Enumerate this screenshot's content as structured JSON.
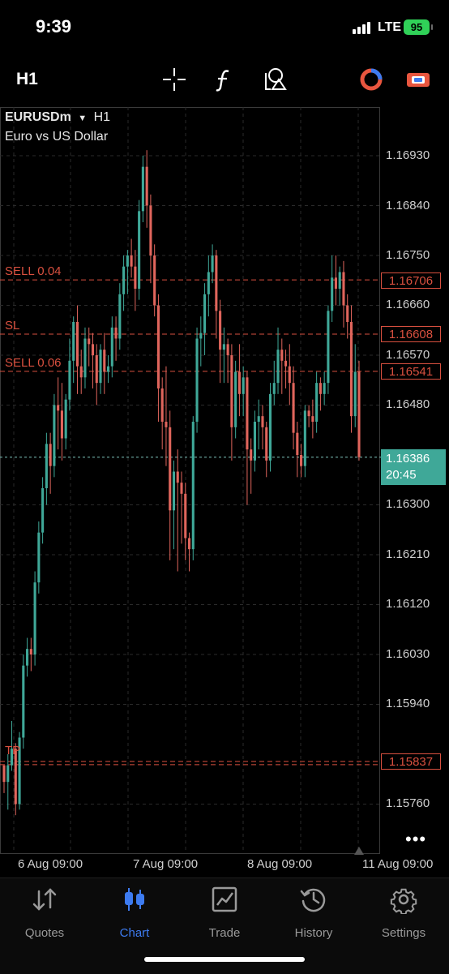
{
  "status_bar": {
    "time": "9:39",
    "network": "LTE",
    "battery": "95"
  },
  "toolbar": {
    "timeframe": "H1",
    "icons": [
      "crosshair-icon",
      "function-icon",
      "objects-icon",
      "one-click-trading-icon",
      "account-icon"
    ]
  },
  "chart_header": {
    "symbol": "EURUSDm",
    "timeframe": "H1",
    "description": "Euro vs US Dollar"
  },
  "price_axis": [
    "1.16930",
    "1.16840",
    "1.16750",
    "1.16660",
    "1.16570",
    "1.16480",
    "1.16300",
    "1.16210",
    "1.16120",
    "1.16030",
    "1.15940",
    "1.15760"
  ],
  "time_axis": [
    "6 Aug 09:00",
    "7 Aug 09:00",
    "8 Aug 09:00",
    "11 Aug 09:00"
  ],
  "levels": {
    "sell1": {
      "label": "SELL 0.04",
      "price": "1.16706"
    },
    "sl": {
      "label": "SL",
      "price": "1.16608"
    },
    "sell2": {
      "label": "SELL 0.06",
      "price": "1.16541"
    },
    "tp": {
      "label": "TP",
      "price": "1.15837"
    }
  },
  "current_price": {
    "price": "1.16386",
    "countdown": "20:45"
  },
  "colors": {
    "bull": "#3fa898",
    "bear": "#e0655c",
    "level": "#d9503f",
    "active_tab": "#3d7bf0"
  },
  "chart_data": {
    "type": "candlestick",
    "symbol": "EURUSDm",
    "timeframe": "H1",
    "ylim": [
      1.1572,
      1.1697
    ],
    "x_ticks": [
      "6 Aug 09:00",
      "7 Aug 09:00",
      "8 Aug 09:00",
      "11 Aug 09:00"
    ],
    "candles": [
      [
        1.1583,
        1.158,
        1.1578,
        1.1582
      ],
      [
        1.158,
        1.1583,
        1.1575,
        1.1585
      ],
      [
        1.1583,
        1.1586,
        1.1582,
        1.1591
      ],
      [
        1.1586,
        1.1576,
        1.1574,
        1.1587
      ],
      [
        1.1576,
        1.1588,
        1.1575,
        1.1589
      ],
      [
        1.1588,
        1.1601,
        1.1586,
        1.1603
      ],
      [
        1.1601,
        1.1604,
        1.1599,
        1.1606
      ],
      [
        1.1604,
        1.1603,
        1.16,
        1.1606
      ],
      [
        1.1603,
        1.1616,
        1.1601,
        1.1618
      ],
      [
        1.1616,
        1.1625,
        1.1614,
        1.1627
      ],
      [
        1.1625,
        1.1633,
        1.1623,
        1.1635
      ],
      [
        1.1633,
        1.1641,
        1.163,
        1.1643
      ],
      [
        1.1641,
        1.1637,
        1.1632,
        1.1643
      ],
      [
        1.1637,
        1.1648,
        1.1635,
        1.165
      ],
      [
        1.1648,
        1.1647,
        1.164,
        1.1653
      ],
      [
        1.1647,
        1.1642,
        1.1638,
        1.1652
      ],
      [
        1.1642,
        1.1649,
        1.164,
        1.165
      ],
      [
        1.1649,
        1.1656,
        1.1647,
        1.166
      ],
      [
        1.1656,
        1.1663,
        1.1652,
        1.1664
      ],
      [
        1.1663,
        1.1655,
        1.165,
        1.1666
      ],
      [
        1.1655,
        1.1653,
        1.165,
        1.1658
      ],
      [
        1.1653,
        1.166,
        1.1651,
        1.1662
      ],
      [
        1.166,
        1.1659,
        1.1655,
        1.1662
      ],
      [
        1.1659,
        1.1657,
        1.1651,
        1.1661
      ],
      [
        1.1657,
        1.1652,
        1.1648,
        1.1659
      ],
      [
        1.1652,
        1.1658,
        1.165,
        1.1659
      ],
      [
        1.1658,
        1.1654,
        1.165,
        1.1661
      ],
      [
        1.1654,
        1.1655,
        1.1652,
        1.1657
      ],
      [
        1.1655,
        1.1662,
        1.1653,
        1.1664
      ],
      [
        1.1662,
        1.166,
        1.1656,
        1.1664
      ],
      [
        1.166,
        1.1668,
        1.1658,
        1.167
      ],
      [
        1.1668,
        1.1673,
        1.1665,
        1.1675
      ],
      [
        1.1673,
        1.1675,
        1.1668,
        1.1676
      ],
      [
        1.1675,
        1.1673,
        1.1671,
        1.1678
      ],
      [
        1.1673,
        1.1669,
        1.1665,
        1.1676
      ],
      [
        1.1669,
        1.1683,
        1.1667,
        1.1685
      ],
      [
        1.1683,
        1.1691,
        1.1681,
        1.1693
      ],
      [
        1.1691,
        1.1684,
        1.168,
        1.1694
      ],
      [
        1.1684,
        1.1675,
        1.167,
        1.1686
      ],
      [
        1.1675,
        1.1666,
        1.1664,
        1.1677
      ],
      [
        1.1666,
        1.1651,
        1.1645,
        1.1668
      ],
      [
        1.1651,
        1.1645,
        1.164,
        1.1653
      ],
      [
        1.1645,
        1.1644,
        1.1637,
        1.1655
      ],
      [
        1.1644,
        1.1629,
        1.162,
        1.1647
      ],
      [
        1.1629,
        1.1636,
        1.1622,
        1.1638
      ],
      [
        1.1636,
        1.1634,
        1.1618,
        1.164
      ],
      [
        1.1634,
        1.1632,
        1.1623,
        1.1636
      ],
      [
        1.1632,
        1.1624,
        1.162,
        1.1634
      ],
      [
        1.1624,
        1.1622,
        1.1618,
        1.1625
      ],
      [
        1.1622,
        1.1645,
        1.162,
        1.1646
      ],
      [
        1.1645,
        1.166,
        1.1643,
        1.1662
      ],
      [
        1.166,
        1.1661,
        1.1655,
        1.1664
      ],
      [
        1.1661,
        1.1668,
        1.1657,
        1.167
      ],
      [
        1.1668,
        1.1672,
        1.1664,
        1.1675
      ],
      [
        1.1672,
        1.1675,
        1.167,
        1.1677
      ],
      [
        1.1675,
        1.1665,
        1.166,
        1.1676
      ],
      [
        1.1665,
        1.1658,
        1.1652,
        1.1667
      ],
      [
        1.1658,
        1.1659,
        1.1652,
        1.1662
      ],
      [
        1.1659,
        1.1657,
        1.1652,
        1.166
      ],
      [
        1.1657,
        1.1644,
        1.1638,
        1.1659
      ],
      [
        1.1644,
        1.1654,
        1.1642,
        1.1656
      ],
      [
        1.1654,
        1.165,
        1.1646,
        1.1659
      ],
      [
        1.165,
        1.1653,
        1.1646,
        1.1655
      ],
      [
        1.1653,
        1.164,
        1.163,
        1.1654
      ],
      [
        1.164,
        1.1638,
        1.1632,
        1.1642
      ],
      [
        1.1638,
        1.1645,
        1.1636,
        1.1647
      ],
      [
        1.1645,
        1.1646,
        1.164,
        1.1649
      ],
      [
        1.1646,
        1.1644,
        1.164,
        1.1648
      ],
      [
        1.1644,
        1.1638,
        1.1635,
        1.1645
      ],
      [
        1.1638,
        1.165,
        1.1636,
        1.1652
      ],
      [
        1.165,
        1.1652,
        1.1648,
        1.1656
      ],
      [
        1.1652,
        1.1658,
        1.165,
        1.1662
      ],
      [
        1.1658,
        1.1656,
        1.165,
        1.166
      ],
      [
        1.1656,
        1.1655,
        1.1651,
        1.1658
      ],
      [
        1.1655,
        1.1652,
        1.1648,
        1.1659
      ],
      [
        1.1652,
        1.1643,
        1.164,
        1.1655
      ],
      [
        1.1643,
        1.1639,
        1.1635,
        1.1645
      ],
      [
        1.1639,
        1.1637,
        1.1635,
        1.1641
      ],
      [
        1.1637,
        1.1647,
        1.1635,
        1.1648
      ],
      [
        1.1647,
        1.1646,
        1.1644,
        1.1648
      ],
      [
        1.1646,
        1.1645,
        1.1642,
        1.1649
      ],
      [
        1.1645,
        1.1652,
        1.1643,
        1.1654
      ],
      [
        1.1652,
        1.165,
        1.1647,
        1.1653
      ],
      [
        1.165,
        1.1652,
        1.1648,
        1.1654
      ],
      [
        1.1652,
        1.1665,
        1.165,
        1.1666
      ],
      [
        1.1665,
        1.1671,
        1.1663,
        1.1675
      ],
      [
        1.1671,
        1.1669,
        1.1666,
        1.1675
      ],
      [
        1.1669,
        1.1672,
        1.1666,
        1.1673
      ],
      [
        1.1672,
        1.1666,
        1.1662,
        1.1674
      ],
      [
        1.1666,
        1.1663,
        1.166,
        1.1668
      ],
      [
        1.1663,
        1.1646,
        1.1643,
        1.1666
      ],
      [
        1.1646,
        1.1654,
        1.1644,
        1.1659
      ],
      [
        1.1654,
        1.16386,
        1.1638,
        1.1656
      ]
    ]
  },
  "tabs": [
    {
      "id": "quotes",
      "label": "Quotes",
      "icon": "quotes-icon",
      "active": false
    },
    {
      "id": "chart",
      "label": "Chart",
      "icon": "chart-icon",
      "active": true
    },
    {
      "id": "trade",
      "label": "Trade",
      "icon": "trade-icon",
      "active": false
    },
    {
      "id": "history",
      "label": "History",
      "icon": "history-icon",
      "active": false
    },
    {
      "id": "settings",
      "label": "Settings",
      "icon": "settings-icon",
      "active": false
    }
  ]
}
